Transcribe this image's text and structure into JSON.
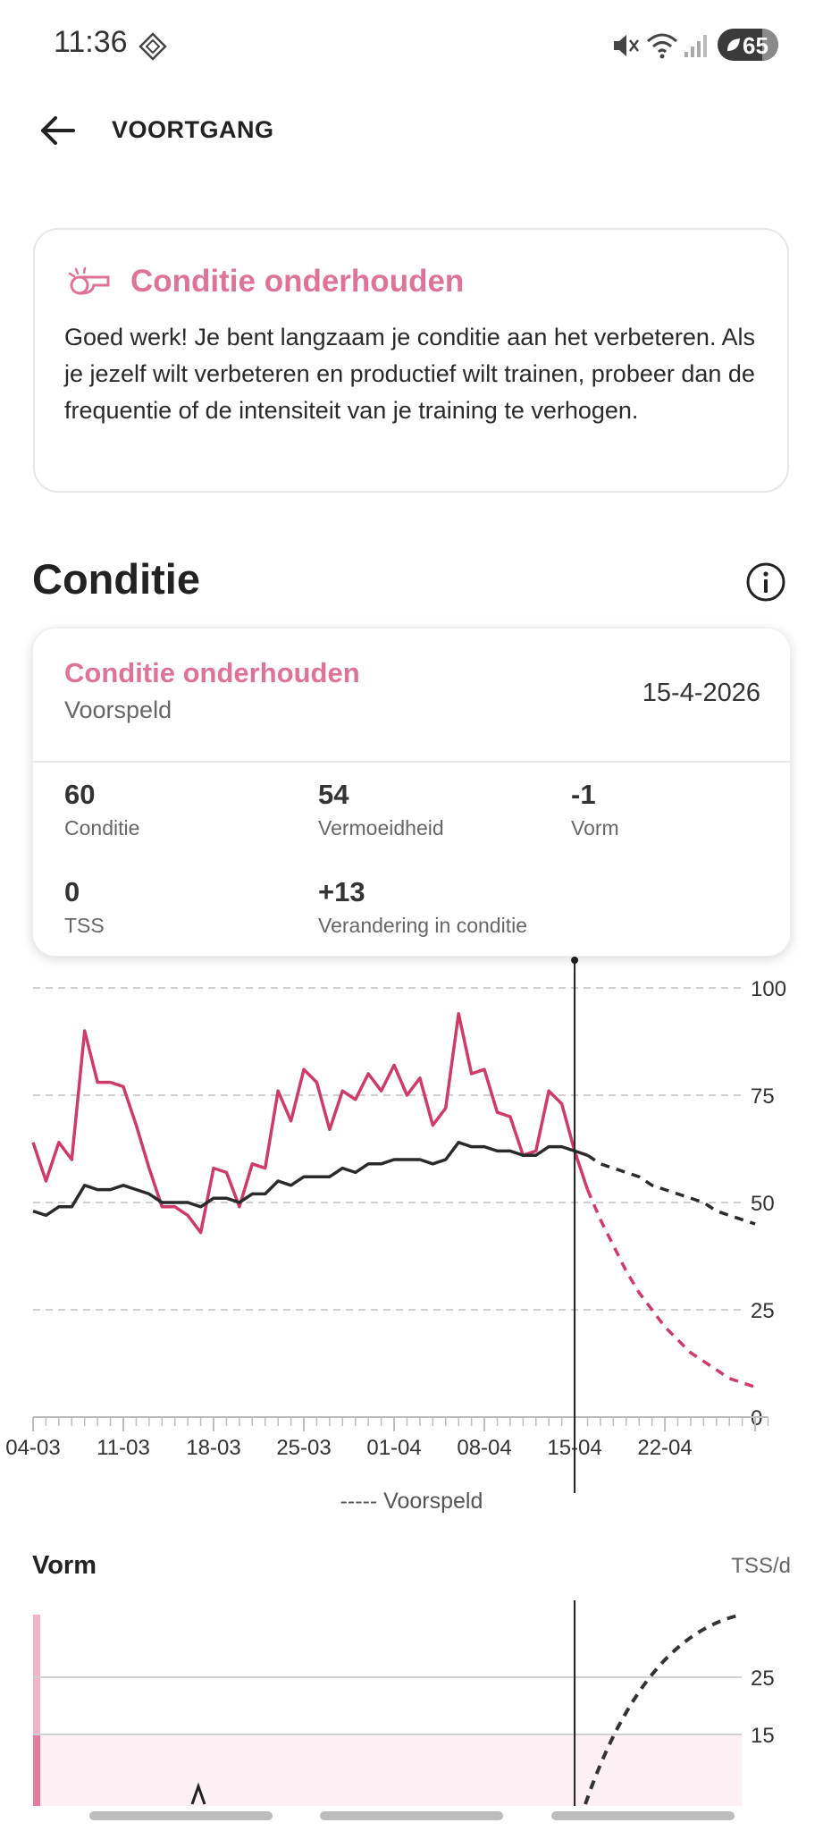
{
  "status": {
    "time": "11:36",
    "battery": "65"
  },
  "header": {
    "title": "VOORTGANG"
  },
  "info_card": {
    "title": "Conditie onderhouden",
    "body": "Goed werk! Je bent langzaam je conditie aan het verbeteren. Als je jezelf wilt verbeteren en productief wilt trainen, probeer dan de frequentie of de intensiteit van je training te verhogen."
  },
  "section": {
    "title": "Conditie"
  },
  "tooltip": {
    "title": "Conditie onderhouden",
    "subtitle": "Voorspeld",
    "date": "15-4-2026",
    "stats": [
      {
        "value": "60",
        "label": "Conditie"
      },
      {
        "value": "54",
        "label": "Vermoeidheid"
      },
      {
        "value": "-1",
        "label": "Vorm"
      },
      {
        "value": "0",
        "label": "TSS"
      },
      {
        "value": "+13",
        "label": "Verandering in conditie"
      }
    ]
  },
  "chart_data": {
    "type": "line",
    "x_tick_labels": [
      "04-03",
      "11-03",
      "18-03",
      "25-03",
      "01-04",
      "08-04",
      "15-04",
      "22-04"
    ],
    "y_tick_labels": [
      "0",
      "25",
      "50",
      "75",
      "100"
    ],
    "ylim": [
      0,
      100
    ],
    "grid": true,
    "legend": "bottom-center",
    "legend_label": "----- Voorspeld",
    "selected_day": 42,
    "series": [
      {
        "color": "#cf3a66",
        "values": [
          64,
          55,
          64,
          60,
          90,
          78,
          78,
          77,
          68,
          58,
          49,
          49,
          47,
          43,
          58,
          57,
          49,
          59,
          58,
          76,
          69,
          81,
          78,
          67,
          76,
          74,
          80,
          76,
          82,
          75,
          79,
          68,
          72,
          94,
          80,
          81,
          71,
          70,
          61,
          62,
          76,
          73,
          62,
          53
        ],
        "forecast": [
          53,
          46,
          40,
          34,
          29,
          25,
          21,
          18,
          15,
          13,
          11,
          9,
          8,
          7
        ]
      },
      {
        "color": "#2a2a2a",
        "values": [
          48,
          47,
          49,
          49,
          54,
          53,
          53,
          54,
          53,
          52,
          50,
          50,
          50,
          49,
          51,
          51,
          50,
          52,
          52,
          55,
          54,
          56,
          56,
          56,
          58,
          57,
          59,
          59,
          60,
          60,
          60,
          59,
          60,
          64,
          63,
          63,
          62,
          62,
          61,
          61,
          63,
          63,
          62,
          61
        ],
        "forecast": [
          61,
          59,
          58,
          57,
          56,
          54,
          53,
          52,
          51,
          50,
          48,
          47,
          46,
          45
        ]
      }
    ]
  },
  "vorm": {
    "title": "Vorm",
    "unit": "TSS/d",
    "y_tick_labels": [
      "15",
      "25"
    ],
    "accent": "#f3b3c6"
  }
}
